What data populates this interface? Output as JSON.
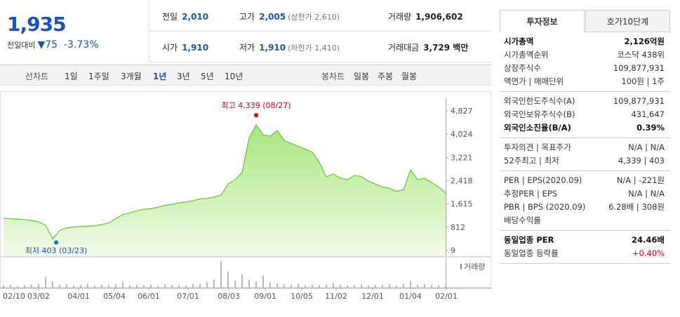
{
  "header": {
    "price": "1,935",
    "change_label": "전일대비",
    "change": "▼75",
    "change_rate": "-3.73%"
  },
  "quote": {
    "rows": [
      [
        {
          "label": "전일",
          "value": "2,010"
        },
        {
          "label": "고가",
          "value": "2,005",
          "sub": "(상한가 2,610)"
        },
        {
          "label": "거래량",
          "value": "1,906,602"
        }
      ],
      [
        {
          "label": "시가",
          "value": "1,910"
        },
        {
          "label": "저가",
          "value": "1,910",
          "sub": "(하한가 1,410)"
        },
        {
          "label": "거래대금",
          "value": "3,729 백만"
        }
      ]
    ]
  },
  "toolbar": {
    "line_label": "선차트",
    "periods": [
      "1일",
      "1주일",
      "3개월",
      "1년",
      "3년",
      "5년",
      "10년"
    ],
    "active": "1년",
    "candle_label": "봉차트",
    "candles": [
      "일봉",
      "주봉",
      "월봉"
    ]
  },
  "chart_data": {
    "type": "area",
    "color": "#5fc92e",
    "values": [
      1115,
      1105,
      1090,
      1070,
      1040,
      990,
      880,
      403,
      700,
      790,
      820,
      830,
      850,
      860,
      900,
      960,
      1100,
      1250,
      1300,
      1380,
      1430,
      1450,
      1500,
      1560,
      1600,
      1650,
      1680,
      1720,
      1790,
      1800,
      1850,
      1920,
      2300,
      2450,
      2700,
      3900,
      4339,
      4000,
      3950,
      4150,
      3800,
      3700,
      3600,
      3500,
      3400,
      3050,
      2550,
      2650,
      2500,
      2450,
      2600,
      2550,
      2400,
      2300,
      2200,
      2150,
      2050,
      2100,
      2780,
      2450,
      2500,
      2350,
      2200,
      2000
    ],
    "ylim": [
      -183,
      5260
    ],
    "yticks": [
      {
        "value": 9,
        "label": "9"
      },
      {
        "value": 812,
        "label": "812"
      },
      {
        "value": 1615,
        "label": "1,615"
      },
      {
        "value": 2418,
        "label": "2,418"
      },
      {
        "value": 3221,
        "label": "3,221"
      },
      {
        "value": 4024,
        "label": "4,024"
      },
      {
        "value": 4827,
        "label": "4,827"
      }
    ],
    "high_label": "최고 4,339 (08/27)",
    "low_label": "최저 403 (03/23)",
    "volume_label": "거래량",
    "volume": [
      8,
      10,
      6,
      9,
      12,
      14,
      40,
      22,
      10,
      12,
      8,
      9,
      14,
      7,
      10,
      9,
      12,
      22,
      8,
      10,
      9,
      11,
      7,
      12,
      10,
      9,
      8,
      14,
      12,
      20,
      30,
      100,
      60,
      25,
      50,
      30,
      22,
      45,
      20,
      15,
      12,
      10,
      14,
      9,
      11,
      8,
      12,
      18,
      10,
      8,
      9,
      11,
      7,
      10,
      9,
      12,
      8,
      14,
      25,
      10,
      12,
      9,
      8,
      7
    ],
    "x_labels": [
      "02/10",
      "03/02",
      "04/01",
      "05/04",
      "06/01",
      "07/01",
      "08/03",
      "09/01",
      "10/05",
      "11/02",
      "12/01",
      "01/04",
      "02/01"
    ]
  },
  "info": {
    "tabs": [
      "투자정보",
      "호가10단계"
    ],
    "active": "투자정보",
    "sections": [
      [
        {
          "label": [
            "시가총액"
          ],
          "value": [
            "2,126억원"
          ],
          "bold": true
        },
        {
          "label": [
            "시가총액순위"
          ],
          "value": [
            "코스닥 438위"
          ]
        },
        {
          "label": [
            "상장주식수"
          ],
          "value": [
            "109,877,931"
          ]
        },
        {
          "label": [
            "액면가",
            "매매단위"
          ],
          "value": [
            "100원",
            "1주"
          ]
        }
      ],
      [
        {
          "label": [
            "외국인한도주식수(A)"
          ],
          "value": [
            "109,877,931"
          ]
        },
        {
          "label": [
            "외국인보유주식수(B)"
          ],
          "value": [
            "431,647"
          ]
        },
        {
          "label": [
            "외국인소진율(B/A)"
          ],
          "value": [
            "0.39%"
          ],
          "bold": true
        }
      ],
      [
        {
          "label": [
            "투자의견",
            "목표주가"
          ],
          "value": [
            "N/A",
            "N/A"
          ]
        },
        {
          "label": [
            "52주최고",
            "최저"
          ],
          "value": [
            "4,339",
            "403"
          ]
        }
      ],
      [
        {
          "label": [
            "PER",
            "EPS(2020.09)"
          ],
          "value": [
            "N/A",
            "-221원"
          ]
        },
        {
          "label": [
            "추정PER",
            "EPS"
          ],
          "value": [
            "N/A",
            "N/A"
          ]
        },
        {
          "label": [
            "PBR",
            "BPS (2020.09)"
          ],
          "value": [
            "6.28배",
            "308원"
          ]
        },
        {
          "label": [
            "배당수익률"
          ],
          "value": []
        }
      ],
      [
        {
          "label": [
            "동일업종 PER"
          ],
          "value": [
            "24.46배"
          ],
          "bold": true
        },
        {
          "label": [
            "동일업종 등락률"
          ],
          "value": [
            "+0.40%"
          ],
          "red": true
        }
      ]
    ]
  }
}
